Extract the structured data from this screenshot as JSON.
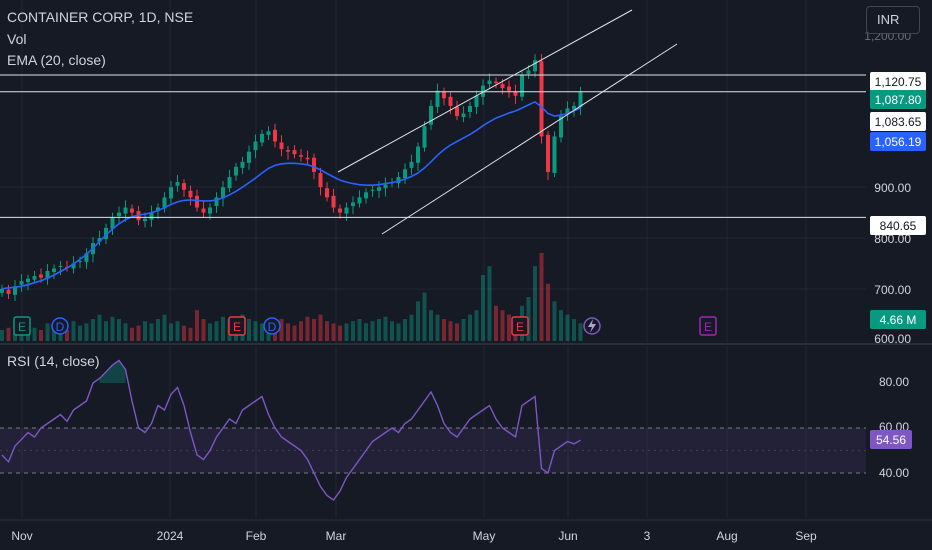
{
  "header": {
    "title": "CONTAINER CORP, 1D, NSE",
    "vol_label": "Vol",
    "ema_label": "EMA (20, close)",
    "currency": "INR"
  },
  "rsi": {
    "label": "RSI (14, close)",
    "current_value": "54.56",
    "axis_ticks": [
      "80.00",
      "60.00",
      "40.00"
    ]
  },
  "price_axis": {
    "ticks": [
      "900.00",
      "800.00",
      "700.00",
      "600.00"
    ],
    "top_partial": "1,200.00"
  },
  "x_axis": {
    "ticks": [
      "Nov",
      "2024",
      "Feb",
      "Mar",
      "May",
      "Jun",
      "3",
      "Aug",
      "Sep"
    ]
  },
  "price_labels": [
    {
      "text": "1,120.75",
      "style": "white"
    },
    {
      "text": "1,087.80",
      "style": "green"
    },
    {
      "text": "1,083.65",
      "style": "white"
    },
    {
      "text": "1,056.19",
      "style": "blue"
    },
    {
      "text": "840.65",
      "style": "white"
    },
    {
      "text": "4.66 M",
      "style": "green"
    }
  ],
  "event_markers": [
    {
      "letter": "E",
      "color": "#089981"
    },
    {
      "letter": "D",
      "color": "#2962ff"
    },
    {
      "letter": "E",
      "color": "#f23645"
    },
    {
      "letter": "D",
      "color": "#2962ff"
    },
    {
      "letter": "E",
      "color": "#f23645"
    },
    {
      "letter": "E",
      "color": "#9c27b0"
    }
  ],
  "colors": {
    "background": "#161a25",
    "up": "#089981",
    "down": "#f23645",
    "ema": "#2962ff",
    "rsi_line": "#7e57c2",
    "rsi_band": "#7e57c2",
    "grid": "#232632",
    "text": "#d1d4dc"
  },
  "chart_data": {
    "type": "candlestick",
    "title": "CONTAINER CORP, 1D, NSE",
    "x": [
      "Nov",
      "2024",
      "Feb",
      "Mar",
      "May",
      "Jun",
      "3",
      "Aug",
      "Sep"
    ],
    "ylim": [
      600,
      1200
    ],
    "horizontal_levels": [
      1120.75,
      1087.8,
      840.65
    ],
    "close_path": [
      700,
      690,
      705,
      715,
      720,
      725,
      722,
      735,
      740,
      745,
      742,
      750,
      755,
      770,
      790,
      800,
      820,
      840,
      850,
      860,
      850,
      835,
      838,
      850,
      860,
      880,
      900,
      910,
      895,
      880,
      860,
      850,
      860,
      880,
      900,
      920,
      940,
      950,
      970,
      990,
      1005,
      1010,
      990,
      975,
      970,
      965,
      960,
      955,
      930,
      900,
      880,
      860,
      850,
      860,
      870,
      880,
      890,
      895,
      900,
      905,
      910,
      920,
      935,
      950,
      980,
      1020,
      1060,
      1090,
      1075,
      1060,
      1040,
      1045,
      1060,
      1080,
      1100,
      1110,
      1105,
      1095,
      1090,
      1080,
      1120,
      1130,
      1150,
      1000,
      930,
      1000,
      1040,
      1055,
      1060,
      1087.8
    ],
    "ema20_path": [
      700,
      702,
      703,
      705,
      708,
      712,
      716,
      721,
      727,
      734,
      741,
      749,
      758,
      768,
      780,
      793,
      806,
      818,
      828,
      836,
      842,
      845,
      847,
      850,
      854,
      860,
      866,
      871,
      874,
      875,
      874,
      873,
      873,
      875,
      879,
      885,
      892,
      900,
      909,
      918,
      928,
      937,
      943,
      946,
      947,
      947,
      946,
      944,
      940,
      934,
      927,
      920,
      914,
      910,
      907,
      905,
      904,
      904,
      905,
      907,
      909,
      912,
      916,
      921,
      928,
      938,
      950,
      963,
      974,
      983,
      990,
      997,
      1004,
      1012,
      1021,
      1029,
      1036,
      1041,
      1046,
      1050,
      1056,
      1062,
      1068,
      1058,
      1045,
      1040,
      1042,
      1045,
      1050,
      1056.19
    ],
    "rsi_path": [
      48,
      45,
      52,
      55,
      58,
      56,
      60,
      62,
      64,
      66,
      63,
      68,
      70,
      72,
      80,
      82,
      85,
      88,
      90,
      86,
      72,
      60,
      58,
      62,
      70,
      68,
      75,
      78,
      70,
      58,
      48,
      46,
      50,
      56,
      60,
      64,
      62,
      68,
      70,
      72,
      74,
      66,
      60,
      56,
      54,
      52,
      50,
      46,
      40,
      34,
      30,
      28,
      32,
      38,
      42,
      46,
      50,
      54,
      56,
      58,
      60,
      58,
      62,
      64,
      68,
      72,
      76,
      70,
      62,
      58,
      56,
      60,
      64,
      66,
      68,
      70,
      64,
      60,
      58,
      56,
      70,
      72,
      74,
      42,
      40,
      50,
      52,
      54,
      53,
      54.56
    ],
    "volume_path": [
      5,
      6,
      4,
      5,
      7,
      6,
      5,
      8,
      6,
      7,
      5,
      9,
      7,
      8,
      10,
      12,
      9,
      11,
      10,
      8,
      6,
      7,
      9,
      8,
      10,
      12,
      8,
      9,
      7,
      6,
      14,
      10,
      8,
      9,
      11,
      10,
      9,
      12,
      10,
      9,
      8,
      7,
      9,
      10,
      8,
      7,
      9,
      11,
      10,
      12,
      9,
      8,
      7,
      8,
      9,
      10,
      8,
      9,
      10,
      11,
      9,
      8,
      10,
      12,
      18,
      22,
      14,
      12,
      10,
      9,
      8,
      10,
      12,
      14,
      30,
      34,
      16,
      14,
      12,
      10,
      16,
      20,
      34,
      40,
      26,
      18,
      14,
      12,
      10,
      8
    ],
    "rsi_ylim": [
      20,
      95
    ],
    "rsi_band": [
      40,
      60
    ]
  }
}
